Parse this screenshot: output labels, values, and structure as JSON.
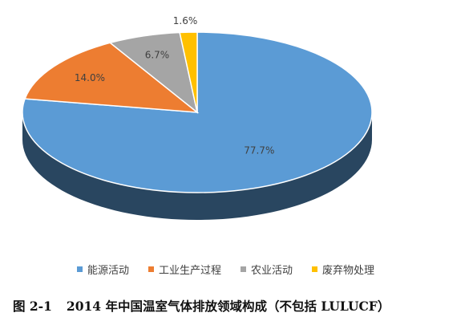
{
  "chart_data": {
    "type": "pie",
    "title": "",
    "categories": [
      "能源活动",
      "工业生产过程",
      "农业活动",
      "废弃物处理"
    ],
    "values": [
      77.7,
      14.0,
      6.7,
      1.6
    ],
    "labels": [
      "77.7%",
      "14.0%",
      "6.7%",
      "1.6%"
    ],
    "colors": [
      "#5B9BD5",
      "#ED7D31",
      "#A5A5A5",
      "#FFC000"
    ],
    "legend_position": "bottom"
  },
  "caption": {
    "number": "图 2-1",
    "text": "2014 年中国温室气体排放领域构成（不包括 LULUCF）"
  }
}
